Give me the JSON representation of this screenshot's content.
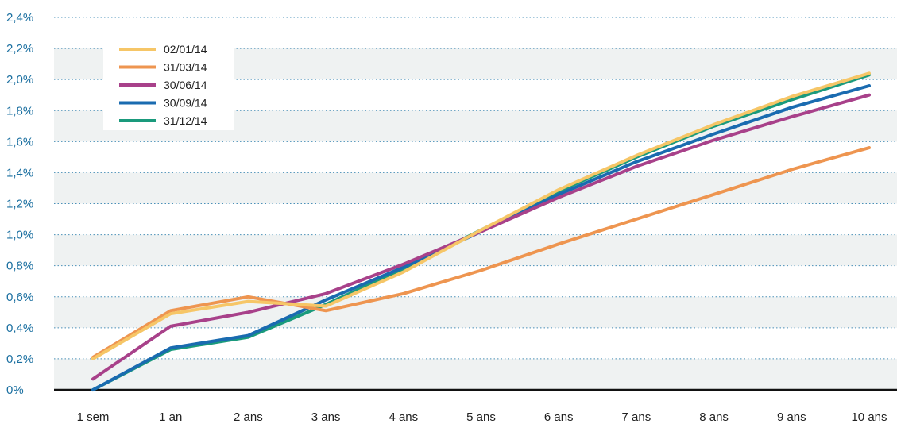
{
  "chart_data": {
    "type": "line",
    "categories": [
      "1 sem",
      "1 an",
      "2 ans",
      "3 ans",
      "4 ans",
      "5 ans",
      "6 ans",
      "7 ans",
      "8 ans",
      "9 ans",
      "10 ans"
    ],
    "y_ticks": [
      "0%",
      "0,2%",
      "0,4%",
      "0,6%",
      "0,8%",
      "1,0%",
      "1,2%",
      "1,4%",
      "1,6%",
      "1,8%",
      "2,0%",
      "2,2%",
      "2,4%"
    ],
    "ylim": [
      0,
      2.4
    ],
    "grid": true,
    "legend_position": "top-left",
    "series": [
      {
        "name": "02/01/14",
        "color": "#f6c667",
        "values": [
          0.2,
          0.49,
          0.57,
          0.54,
          0.76,
          1.03,
          1.29,
          1.51,
          1.71,
          1.89,
          2.04
        ]
      },
      {
        "name": "31/03/14",
        "color": "#ee9550",
        "values": [
          0.21,
          0.51,
          0.6,
          0.51,
          0.62,
          0.77,
          0.94,
          1.1,
          1.26,
          1.42,
          1.56
        ]
      },
      {
        "name": "30/06/14",
        "color": "#a8418a",
        "values": [
          0.07,
          0.41,
          0.5,
          0.62,
          0.81,
          1.02,
          1.24,
          1.44,
          1.61,
          1.76,
          1.9
        ]
      },
      {
        "name": "30/09/14",
        "color": "#1a6bb0",
        "values": [
          0.0,
          0.27,
          0.35,
          0.58,
          0.79,
          1.02,
          1.26,
          1.47,
          1.65,
          1.82,
          1.96
        ]
      },
      {
        "name": "31/12/14",
        "color": "#1a9a7c",
        "values": [
          0.0,
          0.26,
          0.34,
          0.55,
          0.78,
          1.03,
          1.28,
          1.5,
          1.7,
          1.87,
          2.03
        ]
      }
    ]
  }
}
